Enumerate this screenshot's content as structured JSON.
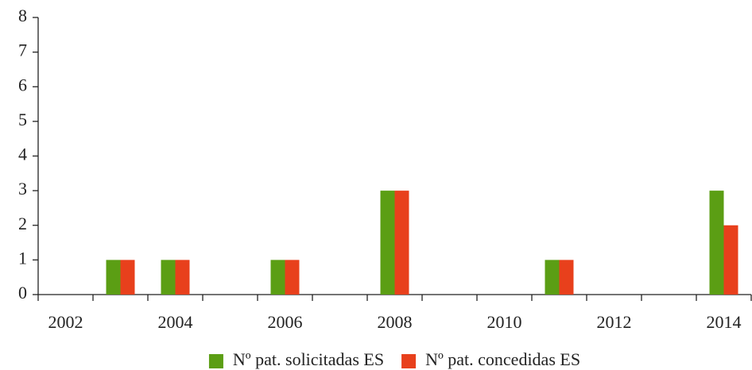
{
  "chart_data": {
    "type": "bar",
    "categories": [
      "2002",
      null,
      "2004",
      null,
      "2006",
      null,
      "2008",
      null,
      "2010",
      null,
      "2012",
      null,
      "2014"
    ],
    "series": [
      {
        "name": "Nº pat. solicitadas ES",
        "color": "#5b9e14",
        "values": [
          0,
          1,
          1,
          0,
          1,
          0,
          3,
          0,
          0,
          1,
          0,
          0,
          3
        ]
      },
      {
        "name": "Nº pat. concedidas ES",
        "color": "#e8401c",
        "values": [
          0,
          1,
          1,
          0,
          1,
          0,
          3,
          0,
          0,
          1,
          0,
          0,
          2
        ]
      }
    ],
    "ylim": [
      0,
      8
    ],
    "yticks": [
      0,
      1,
      2,
      3,
      4,
      5,
      6,
      7,
      8
    ],
    "grid": false,
    "legend": "bottom"
  }
}
